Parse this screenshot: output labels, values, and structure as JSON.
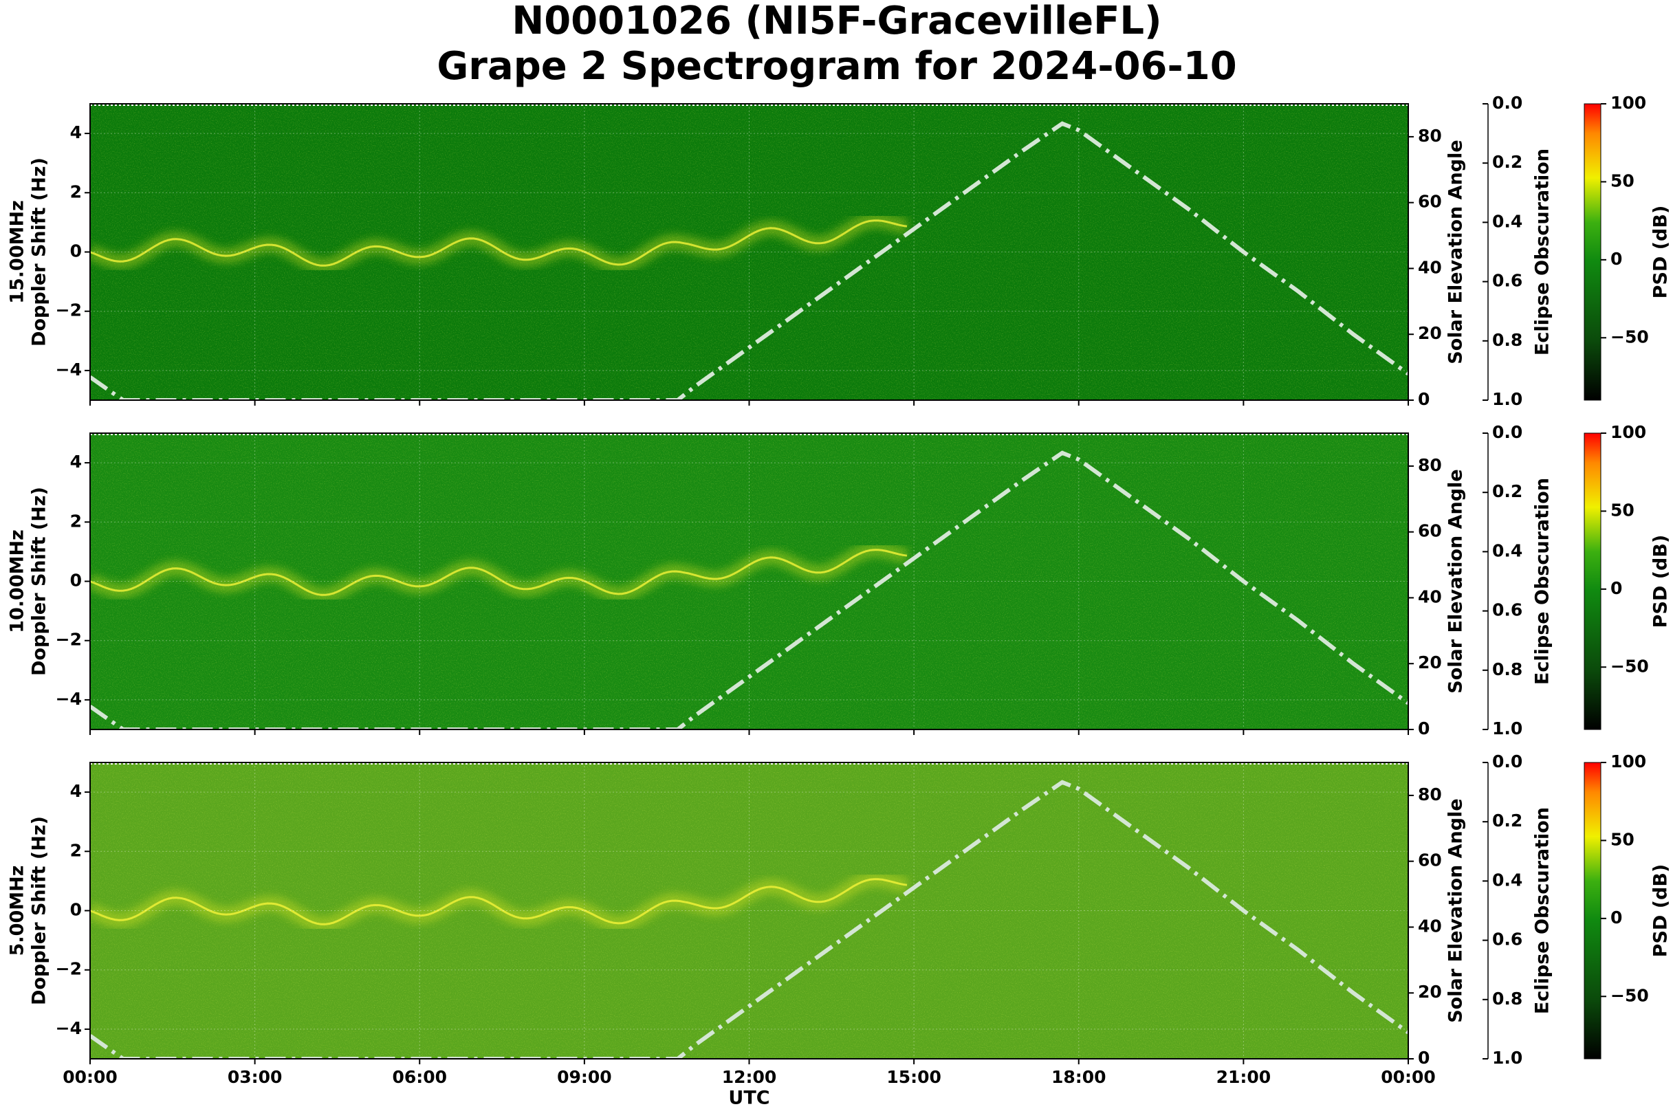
{
  "chart_data": [
    {
      "type": "spectrogram",
      "title": [
        "N0001026 (NI5F-GracevilleFL)",
        "Grape 2 Spectrogram for 2024-06-10"
      ],
      "ylabel": [
        "15.00MHz",
        "Doppler Shift (Hz)"
      ],
      "xlim": [
        0,
        24
      ],
      "xticks": [
        0,
        3,
        6,
        9,
        12,
        15,
        18,
        21,
        24
      ],
      "ylim": [
        -5,
        5
      ],
      "yticks": [
        {
          "value": -4,
          "label": "−4"
        },
        {
          "value": -2,
          "label": "−2"
        },
        0,
        2,
        4
      ],
      "y2label": "Solar Elevation Angle",
      "y2lim": [
        0,
        90
      ],
      "y2ticks": [
        0,
        20,
        40,
        60,
        80
      ],
      "eclipse_label": "Eclipse Obscuration",
      "eclipse_lim": [
        1,
        0
      ],
      "eclipse_ticks": [
        {
          "value": 0,
          "label": "0.0"
        },
        {
          "value": 0.2,
          "label": "0.2"
        },
        {
          "value": 0.4,
          "label": "0.4"
        },
        {
          "value": 0.6,
          "label": "0.6"
        },
        {
          "value": 0.8,
          "label": "0.8"
        },
        {
          "value": 1,
          "label": "1.0"
        }
      ],
      "colorbar_label": "PSD (dB)",
      "colorbar_lim": [
        -90,
        100
      ],
      "colorbar_ticks": [
        {
          "value": -50,
          "label": "−50"
        },
        0,
        50,
        100
      ],
      "grid": true,
      "spectrogram_color": "#0b7a0b",
      "solar_elevation": {
        "color": "#d4e6d4",
        "x": [
          0,
          0.6,
          10.7,
          11,
          12,
          13,
          14,
          15,
          16,
          17,
          17.7,
          18,
          19,
          20,
          21,
          22,
          23,
          24
        ],
        "values": [
          7,
          0,
          0,
          4,
          16,
          28,
          40,
          52,
          64,
          76,
          84,
          82,
          70,
          58,
          45,
          33,
          20,
          8
        ]
      }
    },
    {
      "type": "spectrogram",
      "ylabel": [
        "10.00MHz",
        "Doppler Shift (Hz)"
      ],
      "xlim": [
        0,
        24
      ],
      "xticks": [
        0,
        3,
        6,
        9,
        12,
        15,
        18,
        21,
        24
      ],
      "ylim": [
        -5,
        5
      ],
      "yticks": [
        {
          "value": -4,
          "label": "−4"
        },
        {
          "value": -2,
          "label": "−2"
        },
        0,
        2,
        4
      ],
      "y2label": "Solar Elevation Angle",
      "y2lim": [
        0,
        90
      ],
      "y2ticks": [
        0,
        20,
        40,
        60,
        80
      ],
      "eclipse_label": "Eclipse Obscuration",
      "eclipse_lim": [
        1,
        0
      ],
      "eclipse_ticks": [
        {
          "value": 0,
          "label": "0.0"
        },
        {
          "value": 0.2,
          "label": "0.2"
        },
        {
          "value": 0.4,
          "label": "0.4"
        },
        {
          "value": 0.6,
          "label": "0.6"
        },
        {
          "value": 0.8,
          "label": "0.8"
        },
        {
          "value": 1,
          "label": "1.0"
        }
      ],
      "colorbar_label": "PSD (dB)",
      "colorbar_lim": [
        -90,
        100
      ],
      "colorbar_ticks": [
        {
          "value": -50,
          "label": "−50"
        },
        0,
        50,
        100
      ],
      "grid": true,
      "spectrogram_color": "#188a12",
      "solar_elevation": {
        "color": "#d4e6d4",
        "x": [
          0,
          0.6,
          10.7,
          11,
          12,
          13,
          14,
          15,
          16,
          17,
          17.7,
          18,
          19,
          20,
          21,
          22,
          23,
          24
        ],
        "values": [
          7,
          0,
          0,
          4,
          16,
          28,
          40,
          52,
          64,
          76,
          84,
          82,
          70,
          58,
          45,
          33,
          20,
          8
        ]
      }
    },
    {
      "type": "spectrogram",
      "ylabel": [
        "5.00MHz",
        "Doppler Shift (Hz)"
      ],
      "xlabel": "UTC",
      "xlim": [
        0,
        24
      ],
      "xticks": [
        {
          "value": 0,
          "label": "00:00"
        },
        {
          "value": 3,
          "label": "03:00"
        },
        {
          "value": 6,
          "label": "06:00"
        },
        {
          "value": 9,
          "label": "09:00"
        },
        {
          "value": 12,
          "label": "12:00"
        },
        {
          "value": 15,
          "label": "15:00"
        },
        {
          "value": 18,
          "label": "18:00"
        },
        {
          "value": 21,
          "label": "21:00"
        },
        {
          "value": 24,
          "label": "00:00"
        }
      ],
      "ylim": [
        -5,
        5
      ],
      "yticks": [
        {
          "value": -4,
          "label": "−4"
        },
        {
          "value": -2,
          "label": "−2"
        },
        0,
        2,
        4
      ],
      "y2label": "Solar Elevation Angle",
      "y2lim": [
        0,
        90
      ],
      "y2ticks": [
        0,
        20,
        40,
        60,
        80
      ],
      "eclipse_label": "Eclipse Obscuration",
      "eclipse_lim": [
        1,
        0
      ],
      "eclipse_ticks": [
        {
          "value": 0,
          "label": "0.0"
        },
        {
          "value": 0.2,
          "label": "0.2"
        },
        {
          "value": 0.4,
          "label": "0.4"
        },
        {
          "value": 0.6,
          "label": "0.6"
        },
        {
          "value": 0.8,
          "label": "0.8"
        },
        {
          "value": 1,
          "label": "1.0"
        }
      ],
      "colorbar_label": "PSD (dB)",
      "colorbar_lim": [
        -90,
        100
      ],
      "colorbar_ticks": [
        {
          "value": -50,
          "label": "−50"
        },
        0,
        50,
        100
      ],
      "grid": true,
      "spectrogram_color": "#5aa61e",
      "solar_elevation": {
        "color": "#d4e6d4",
        "x": [
          0,
          0.6,
          10.7,
          11,
          12,
          13,
          14,
          15,
          16,
          17,
          17.7,
          18,
          19,
          20,
          21,
          22,
          23,
          24
        ],
        "values": [
          7,
          0,
          0,
          4,
          16,
          28,
          40,
          52,
          64,
          76,
          84,
          82,
          70,
          58,
          45,
          33,
          20,
          8
        ]
      }
    }
  ]
}
